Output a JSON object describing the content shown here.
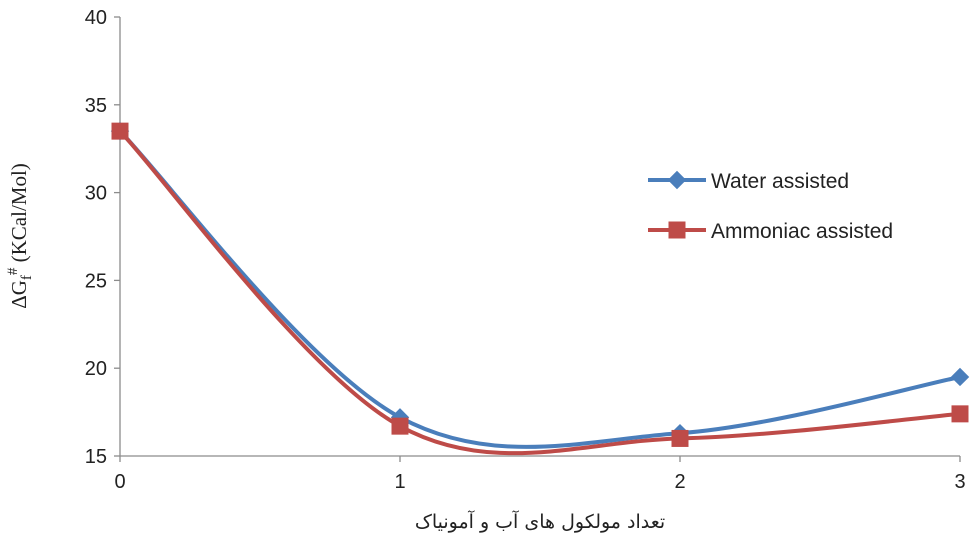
{
  "chart_data": {
    "type": "line",
    "title": "",
    "xlabel": "تعداد مولکول های آب و آمونیاک",
    "ylabel": {
      "prefix": "ΔG",
      "subscript": "f",
      "superscript": "#",
      "suffix": " (KCal/Mol)"
    },
    "x": [
      0,
      1,
      2,
      3
    ],
    "xlim": [
      0,
      3
    ],
    "ylim": [
      15,
      40
    ],
    "x_ticks": [
      "0",
      "1",
      "2",
      "3"
    ],
    "y_ticks": [
      "15",
      "20",
      "25",
      "30",
      "35",
      "40"
    ],
    "grid": false,
    "smooth": true,
    "legend_position": "right",
    "series": [
      {
        "name": "Water assisted",
        "values": [
          33.5,
          17.2,
          16.3,
          19.5
        ],
        "color": "#4a7ebb",
        "marker": "diamond"
      },
      {
        "name": "Ammoniac assisted",
        "values": [
          33.5,
          16.7,
          16.0,
          17.4
        ],
        "color": "#be4b48",
        "marker": "square"
      }
    ]
  }
}
